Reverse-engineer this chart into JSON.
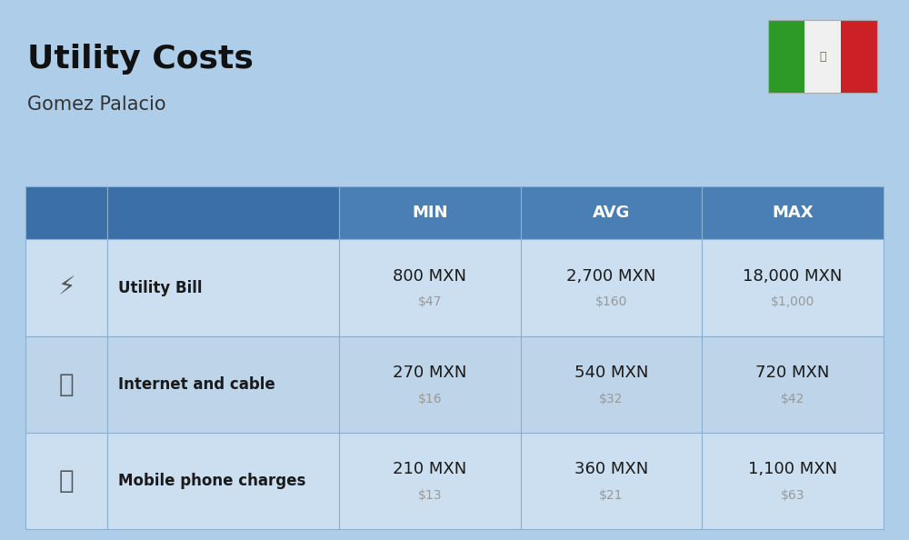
{
  "title": "Utility Costs",
  "subtitle": "Gomez Palacio",
  "bg_color": "#aecde8",
  "header_color": "#4a7fb5",
  "header_text_color": "#ffffff",
  "row_color_1": "#ccdff0",
  "row_color_2": "#bdd4e9",
  "cell_text_color": "#1a1a1a",
  "sub_text_color": "#999999",
  "col_header_dark": "#3a6fa8",
  "border_color": "#8ab0d0",
  "flag_green": "#2d9a27",
  "flag_white": "#f0f0f0",
  "flag_red": "#cc2027",
  "title_fontsize": 26,
  "subtitle_fontsize": 15,
  "header_fontsize": 13,
  "label_fontsize": 12,
  "value_fontsize": 13,
  "subvalue_fontsize": 10,
  "rows": [
    {
      "label": "Utility Bill",
      "min_mxn": "800 MXN",
      "min_usd": "$47",
      "avg_mxn": "2,700 MXN",
      "avg_usd": "$160",
      "max_mxn": "18,000 MXN",
      "max_usd": "$1,000"
    },
    {
      "label": "Internet and cable",
      "min_mxn": "270 MXN",
      "min_usd": "$16",
      "avg_mxn": "540 MXN",
      "avg_usd": "$32",
      "max_mxn": "720 MXN",
      "max_usd": "$42"
    },
    {
      "label": "Mobile phone charges",
      "min_mxn": "210 MXN",
      "min_usd": "$13",
      "avg_mxn": "360 MXN",
      "avg_usd": "$21",
      "max_mxn": "1,100 MXN",
      "max_usd": "$63"
    }
  ]
}
